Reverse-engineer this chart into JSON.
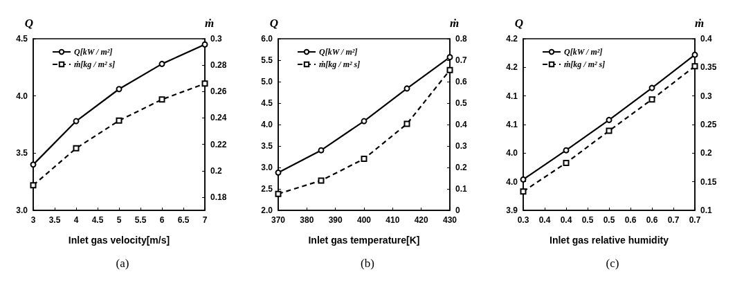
{
  "chart_data": [
    {
      "type": "line",
      "xlabel": "Inlet gas velocity[m/s]",
      "ylabel": "Q",
      "y2label": "ṁ",
      "annotations": [
        "(a)"
      ],
      "legend": "top left",
      "grid": false,
      "x": [
        3,
        4,
        5,
        6,
        7
      ],
      "xlim": [
        3,
        7
      ],
      "xticks": [
        3,
        3.5,
        4,
        4.5,
        5,
        5.5,
        6,
        6.5,
        7
      ],
      "ylim": [
        3,
        4.5
      ],
      "yticks": [
        {
          "value": 3,
          "label": "3.0"
        },
        3.5,
        {
          "value": 4,
          "label": "4.0"
        },
        4.5
      ],
      "y2lim": [
        0.17,
        0.3
      ],
      "y2ticks": [
        0.18,
        0.2,
        0.22,
        0.24,
        0.26,
        0.28,
        0.3
      ],
      "series": [
        {
          "name": "Q[kW / m²]",
          "color": "#000000",
          "marker": "circle",
          "line_style": "solid",
          "values": [
            3.4,
            3.78,
            4.06,
            4.28,
            4.45
          ]
        },
        {
          "name": "ṁ[kg / m² s]",
          "color": "#000000",
          "marker": "square",
          "line_style": "dashed",
          "axis": "y2",
          "values": [
            0.189,
            0.217,
            0.238,
            0.254,
            0.266
          ]
        }
      ]
    },
    {
      "type": "line",
      "xlabel": "Inlet gas temperature[K]",
      "ylabel": "Q",
      "y2label": "ṁ",
      "annotations": [
        "(b)"
      ],
      "legend": "top left",
      "grid": false,
      "x": [
        370,
        385,
        400,
        415,
        430
      ],
      "xlim": [
        370,
        430
      ],
      "xticks": [
        370,
        380,
        390,
        400,
        410,
        420,
        430
      ],
      "ylim": [
        2,
        6
      ],
      "yticks": [
        {
          "value": 2,
          "label": "2.0"
        },
        2.5,
        {
          "value": 3,
          "label": "3.0"
        },
        3.5,
        {
          "value": 4,
          "label": "4.0"
        },
        4.5,
        {
          "value": 5,
          "label": "5.0"
        },
        5.5,
        {
          "value": 6,
          "label": "6.0"
        }
      ],
      "y2lim": [
        0,
        0.8
      ],
      "y2ticks": [
        0,
        0.1,
        0.2,
        0.3,
        0.4,
        0.5,
        0.6,
        0.7,
        0.8
      ],
      "series": [
        {
          "name": "Q[kW / m²]",
          "color": "#000000",
          "marker": "circle",
          "line_style": "solid",
          "values": [
            2.88,
            3.4,
            4.08,
            4.84,
            5.57
          ]
        },
        {
          "name": "ṁ[kg / m² s]",
          "color": "#000000",
          "marker": "square",
          "line_style": "dashed",
          "axis": "y2",
          "values": [
            0.077,
            0.139,
            0.24,
            0.403,
            0.654
          ]
        }
      ]
    },
    {
      "type": "line",
      "xlabel": "Inlet gas relative humidity",
      "ylabel": "Q",
      "y2label": "ṁ",
      "annotations": [
        "(c)"
      ],
      "legend": "top left",
      "grid": false,
      "x": [
        0.3,
        0.4,
        0.5,
        0.6,
        0.7
      ],
      "xlim": [
        0.3,
        0.7
      ],
      "xticks": [
        {
          "value": 0.3,
          "label": "0.3"
        },
        {
          "value": 0.35,
          "label": "0.4"
        },
        {
          "value": 0.4,
          "label": "0.4"
        },
        {
          "value": 0.45,
          "label": "0.5"
        },
        {
          "value": 0.5,
          "label": "0.5"
        },
        {
          "value": 0.55,
          "label": "0.6"
        },
        {
          "value": 0.6,
          "label": "0.6"
        },
        {
          "value": 0.65,
          "label": "0.7"
        },
        {
          "value": 0.7,
          "label": "0.7"
        }
      ],
      "ylim": [
        3.9,
        4.2
      ],
      "yticks": [
        {
          "value": 3.9,
          "label": "3.9"
        },
        {
          "value": 3.95,
          "label": "4.0"
        },
        {
          "value": 4.0,
          "label": "4.0"
        },
        {
          "value": 4.05,
          "label": "4.1"
        },
        {
          "value": 4.1,
          "label": "4.1"
        },
        {
          "value": 4.15,
          "label": "4.2"
        },
        {
          "value": 4.2,
          "label": "4.2"
        }
      ],
      "y2lim": [
        0.1,
        0.4
      ],
      "y2ticks": [
        0.1,
        0.15,
        0.2,
        0.25,
        0.3,
        0.35,
        0.4
      ],
      "series": [
        {
          "name": "Q[kW / m²]",
          "color": "#000000",
          "marker": "circle",
          "line_style": "solid",
          "values": [
            3.954,
            4.005,
            4.058,
            4.114,
            4.172
          ]
        },
        {
          "name": "ṁ[kg / m² s]",
          "color": "#000000",
          "marker": "square",
          "line_style": "dashed",
          "axis": "y2",
          "values": [
            0.133,
            0.183,
            0.239,
            0.294,
            0.352
          ]
        }
      ]
    }
  ]
}
